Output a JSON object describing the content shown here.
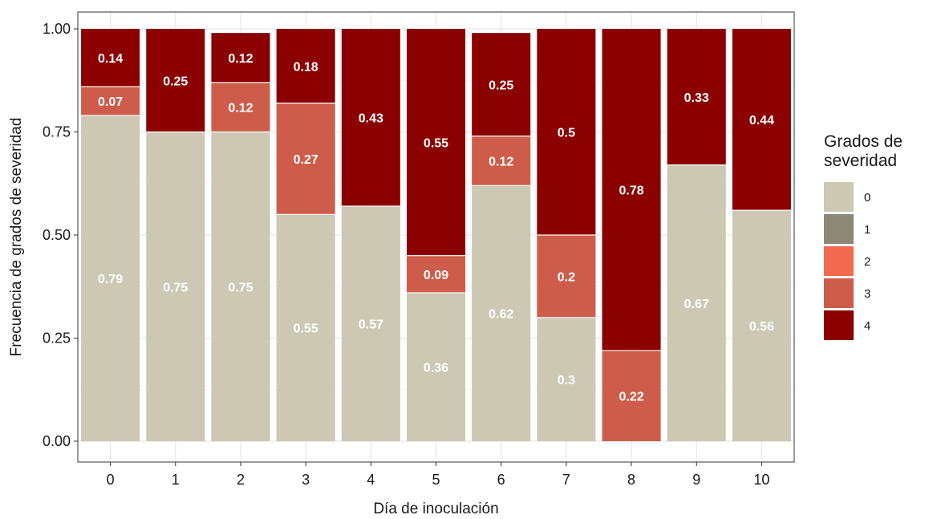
{
  "chart_data": {
    "type": "bar",
    "stacked": true,
    "categories": [
      "0",
      "1",
      "2",
      "3",
      "4",
      "5",
      "6",
      "7",
      "8",
      "9",
      "10"
    ],
    "xlabel": "Día de inoculación",
    "ylabel": "Frecuencia de grados de severidad",
    "ylim": [
      0,
      1
    ],
    "yticks": [
      "0.00",
      "0.25",
      "0.50",
      "0.75",
      "1.00"
    ],
    "grid": true,
    "legend_position": "right",
    "legend_title": [
      "Grados de",
      "severidad"
    ],
    "series": [
      {
        "name": "0",
        "color": "#ccc8b3",
        "values": [
          0.79,
          0.75,
          0.75,
          0.55,
          0.57,
          0.36,
          0.62,
          0.3,
          0,
          0.67,
          0.56
        ]
      },
      {
        "name": "1",
        "color": "#8c8777",
        "values": [
          0,
          0,
          0,
          0,
          0,
          0,
          0,
          0,
          0,
          0,
          0
        ]
      },
      {
        "name": "2",
        "color": "#ef6a50",
        "values": [
          0,
          0,
          0,
          0,
          0,
          0,
          0,
          0,
          0,
          0,
          0
        ]
      },
      {
        "name": "3",
        "color": "#cd5d4a",
        "values": [
          0.07,
          0,
          0.12,
          0.27,
          0,
          0.09,
          0.12,
          0.2,
          0.22,
          0,
          0
        ]
      },
      {
        "name": "4",
        "color": "#8b0000",
        "values": [
          0.14,
          0.25,
          0.12,
          0.18,
          0.43,
          0.55,
          0.25,
          0.5,
          0.78,
          0.33,
          0.44
        ]
      }
    ]
  }
}
